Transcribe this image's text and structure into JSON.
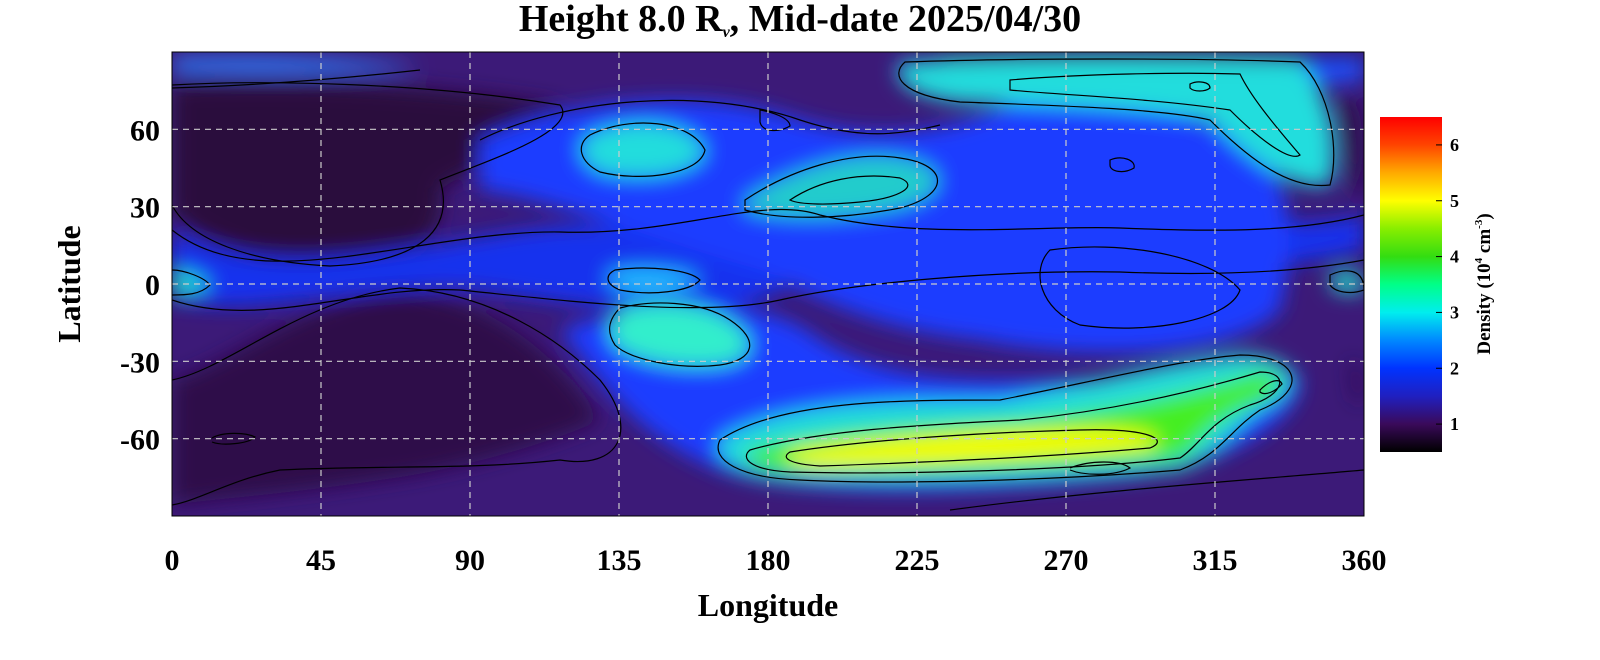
{
  "chart_data": {
    "type": "heatmap",
    "title": {
      "prefix": "Height 8.0 R",
      "subscript": "ν",
      "suffix": ", Mid-date 2025/04/30"
    },
    "xlabel": "Longitude",
    "ylabel": "Latitude",
    "xlim": [
      0,
      360
    ],
    "ylim": [
      -90,
      90
    ],
    "x_ticks": [
      "0",
      "45",
      "90",
      "135",
      "180",
      "225",
      "270",
      "315",
      "360"
    ],
    "y_ticks": [
      "60",
      "30",
      "0",
      "-30",
      "-60"
    ],
    "grid": true,
    "colorbar": {
      "label_prefix": "Density (10",
      "label_exp1": "4",
      "label_mid": " cm",
      "label_exp2": "-3",
      "label_suffix": ")",
      "range": [
        0.5,
        6.5
      ],
      "ticks": [
        "1",
        "2",
        "3",
        "4",
        "5",
        "6"
      ],
      "colors": [
        "#000000",
        "#3a0a5a",
        "#2020c0",
        "#0033ff",
        "#0088ff",
        "#00eeee",
        "#00ff88",
        "#33dd11",
        "#88ee00",
        "#ffff00",
        "#ffaa00",
        "#ff4400",
        "#ff0000"
      ]
    },
    "regions": [
      {
        "lon": 130,
        "lat": -20,
        "value": 2.9
      },
      {
        "lon": 150,
        "lat": 55,
        "value": 3.0
      },
      {
        "lon": 210,
        "lat": 38,
        "value": 3.8
      },
      {
        "lon": 290,
        "lat": 75,
        "value": 4.0
      },
      {
        "lon": 250,
        "lat": -65,
        "value": 5.4
      },
      {
        "lon": 320,
        "lat": -40,
        "value": 4.2
      },
      {
        "lon": 60,
        "lat": 40,
        "value": 0.9
      },
      {
        "lon": 80,
        "lat": -30,
        "value": 1.0
      },
      {
        "lon": 275,
        "lat": 0,
        "value": 1.1
      }
    ]
  }
}
